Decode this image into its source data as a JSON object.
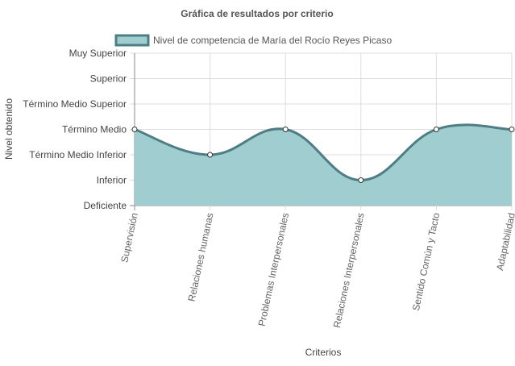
{
  "chart_data": {
    "type": "area",
    "title": "Gráfica de resultados por criterio",
    "xlabel": "Criterios",
    "ylabel": "Nivel obtenido",
    "categories": [
      "Supervisión",
      "Relaciones humanas",
      "Problemas Interpersonales",
      "Relaciones Interpersonales",
      "Sentido Común y Tacto",
      "Adaptabilidad"
    ],
    "y_levels": [
      "Deficiente",
      "Inferior",
      "Término Medio Inferior",
      "Término Medio",
      "Término Medio Superior",
      "Superior",
      "Muy Superior"
    ],
    "ylim": [
      0,
      6
    ],
    "series": [
      {
        "name": "Nivel de competencia de María del Rocío Reyes Picaso",
        "values": [
          3,
          2,
          3,
          1,
          3,
          3
        ]
      }
    ],
    "colors": {
      "fill": "#a0cdd0",
      "line": "#4e7d84",
      "point_fill": "#ffffff",
      "point_stroke": "#333333",
      "grid": "#dddddd",
      "axis": "#888888"
    },
    "grid": true,
    "legend_position": "top"
  }
}
